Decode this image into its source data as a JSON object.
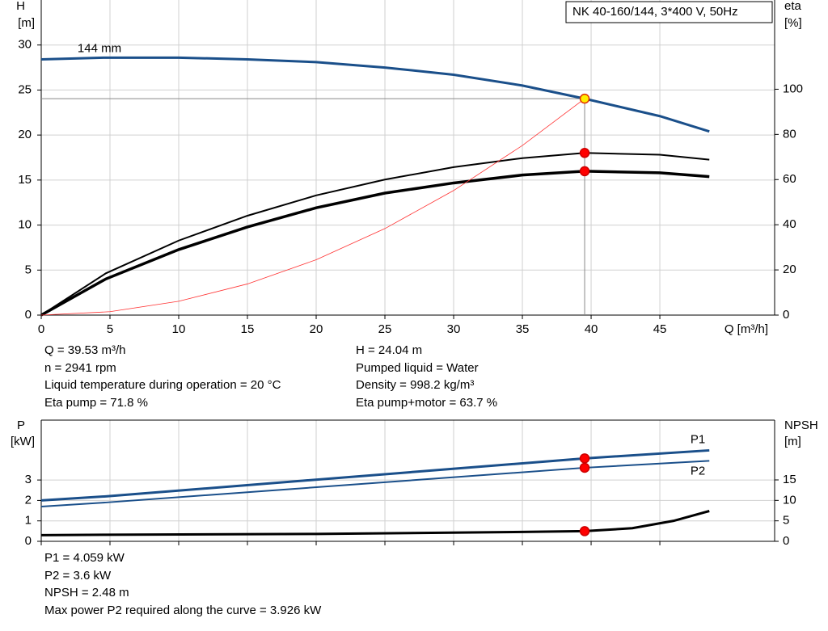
{
  "chart_data": [
    {
      "type": "line",
      "title": "NK 40-160/144, 3*400 V, 50Hz",
      "ylabel": [
        "H",
        "[m]"
      ],
      "y2label": [
        "eta",
        "[%]"
      ],
      "xlabel": "Q [m³/h]",
      "xlim": [
        0,
        53.35
      ],
      "ylim": [
        0,
        35
      ],
      "y2lim": [
        0,
        139.5
      ],
      "xticks": [
        0,
        5,
        10,
        15,
        20,
        25,
        30,
        35,
        40,
        45
      ],
      "yticks": [
        0,
        5,
        10,
        15,
        20,
        25,
        30
      ],
      "y2ticks": [
        0,
        20,
        40,
        60,
        80,
        100
      ],
      "grid": true,
      "operating_q": 39.53,
      "crosshair": true,
      "series": [
        {
          "name": "144 mm",
          "color": "#1a4f8a",
          "width": 3,
          "axis": "y",
          "marker_color": "#ffee00",
          "x": [
            0,
            4.7,
            10,
            15,
            20,
            25,
            30,
            35,
            39.53,
            45,
            48.6
          ],
          "values": [
            28.4,
            28.6,
            28.6,
            28.4,
            28.1,
            27.5,
            26.7,
            25.5,
            24.04,
            22.1,
            20.4
          ]
        },
        {
          "color": "#000000",
          "width": 2,
          "axis": "y2",
          "marker_color": "#ff0000",
          "x": [
            0,
            4.7,
            10,
            15,
            20,
            25,
            30,
            35,
            39.53,
            45,
            48.6
          ],
          "values": [
            0,
            18.5,
            33,
            44,
            53,
            60,
            65.5,
            69.5,
            71.8,
            71,
            68.8
          ]
        },
        {
          "color": "#000000",
          "width": 3.5,
          "axis": "y2",
          "marker_color": "#ff0000",
          "x": [
            0,
            4.7,
            10,
            15,
            20,
            25,
            30,
            35,
            39.53,
            45,
            48.6
          ],
          "values": [
            0,
            16,
            29,
            39,
            47.5,
            54,
            58.5,
            62,
            63.7,
            63,
            61.3
          ]
        },
        {
          "color": "#ff3333",
          "width": 0.8,
          "axis": "y",
          "x": [
            0,
            5,
            10,
            15,
            20,
            25,
            30,
            35,
            39.53
          ],
          "values": [
            0,
            0.38,
            1.54,
            3.46,
            6.15,
            9.61,
            13.84,
            18.84,
            24.04
          ]
        }
      ]
    },
    {
      "type": "line",
      "ylabel": [
        "P",
        "[kW]"
      ],
      "y2label": [
        "NPSH",
        "[m]"
      ],
      "xlim": [
        0,
        53.35
      ],
      "ylim": [
        0,
        5.93
      ],
      "y2lim": [
        0,
        29.6
      ],
      "xticks": [
        0,
        5,
        10,
        15,
        20,
        25,
        30,
        35,
        40,
        45
      ],
      "yticks": [
        0,
        1,
        2,
        3
      ],
      "y2ticks": [
        0,
        5,
        10,
        15
      ],
      "grid": true,
      "operating_q": 39.53,
      "series": [
        {
          "name": "P1",
          "color": "#1a4f8a",
          "width": 3,
          "axis": "y",
          "marker_color": "#ff0000",
          "x": [
            0,
            4.7,
            39.53,
            48.6
          ],
          "values": [
            2.0,
            2.2,
            4.059,
            4.45
          ]
        },
        {
          "name": "P2",
          "color": "#1a4f8a",
          "width": 2,
          "axis": "y",
          "marker_color": "#ff0000",
          "x": [
            0,
            4.7,
            39.53,
            48.6
          ],
          "values": [
            1.7,
            1.9,
            3.6,
            3.94
          ]
        },
        {
          "color": "#000000",
          "width": 3,
          "axis": "y2",
          "marker_color": "#ff0000",
          "x": [
            0,
            4.7,
            20,
            35,
            39.53,
            43,
            46,
            48.6
          ],
          "values": [
            1.5,
            1.6,
            1.8,
            2.3,
            2.48,
            3.2,
            5,
            7.4
          ]
        }
      ]
    }
  ],
  "info_top": {
    "left": [
      "Q = 39.53 m³/h",
      "n = 2941 rpm",
      "Liquid temperature during operation = 20 °C",
      "Eta pump = 71.8 %"
    ],
    "right": [
      "H = 24.04 m",
      "Pumped liquid = Water",
      "Density = 998.2 kg/m³",
      "Eta pump+motor = 63.7 %"
    ]
  },
  "info_bottom": [
    "P1 = 4.059 kW",
    "P2 = 3.6 kW",
    "NPSH = 2.48 m",
    "Max power P2 required along the curve = 3.926 kW"
  ]
}
